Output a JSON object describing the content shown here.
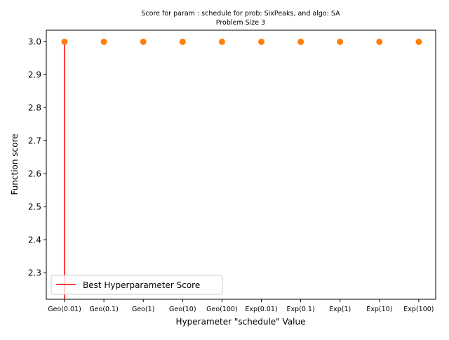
{
  "chart_data": {
    "type": "scatter",
    "title_line1": "Score for param : schedule for prob: SixPeaks, and algo: SA",
    "title_line2": "Problem Size 3",
    "xlabel": "Hyperameter \"schedule\" Value",
    "ylabel": "Function score",
    "categories": [
      "Geo(0.01)",
      "Geo(0.1)",
      "Geo(1)",
      "Geo(10)",
      "Geo(100)",
      "Exp(0.01)",
      "Exp(0.1)",
      "Exp(1)",
      "Exp(10)",
      "Exp(100)"
    ],
    "values": [
      3.0,
      3.0,
      3.0,
      3.0,
      3.0,
      3.0,
      3.0,
      3.0,
      3.0,
      3.0
    ],
    "ylim": [
      2.22,
      3.035
    ],
    "yticks": [
      "2.3",
      "2.4",
      "2.5",
      "2.6",
      "2.7",
      "2.8",
      "2.9",
      "3.0"
    ],
    "point_color": "#ff7f0e",
    "best_line": {
      "category_index": 0,
      "from": 2.22,
      "to": 3.0,
      "color": "#ff0000",
      "label": "Best Hyperparameter Score"
    },
    "legend_position": "lower-left",
    "grid": false
  }
}
